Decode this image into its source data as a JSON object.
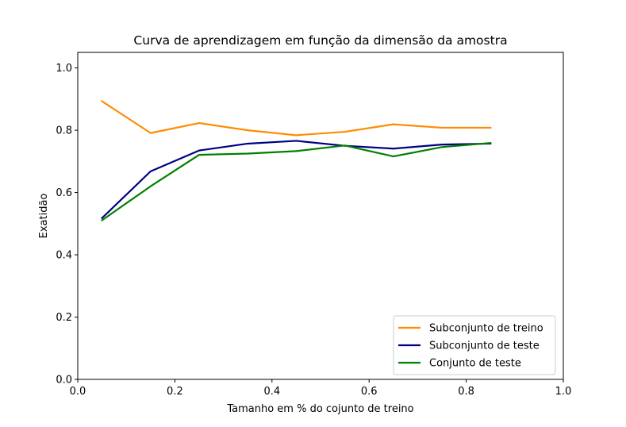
{
  "chart_data": {
    "type": "line",
    "title": "Curva de aprendizagem em função da dimensão da amostra",
    "xlabel": "Tamanho em % do cojunto de treino",
    "ylabel": "Exatidão",
    "xlim": [
      0.0,
      1.0
    ],
    "ylim": [
      0.0,
      1.05
    ],
    "xticks": [
      "0.0",
      "0.2",
      "0.4",
      "0.6",
      "0.8",
      "1.0"
    ],
    "yticks": [
      "0.0",
      "0.2",
      "0.4",
      "0.6",
      "0.8",
      "1.0"
    ],
    "grid": false,
    "legend_position": "lower-right",
    "x": [
      0.05,
      0.15,
      0.25,
      0.35,
      0.45,
      0.55,
      0.65,
      0.75,
      0.85
    ],
    "series": [
      {
        "name": "Subconjunto de treino",
        "color": "#ff8c00",
        "values": [
          0.893,
          0.791,
          0.823,
          0.8,
          0.784,
          0.795,
          0.819,
          0.808,
          0.808
        ]
      },
      {
        "name": "Subconjunto de teste",
        "color": "#000080",
        "values": [
          0.518,
          0.668,
          0.735,
          0.757,
          0.766,
          0.75,
          0.741,
          0.754,
          0.757
        ]
      },
      {
        "name": "Conjunto de teste",
        "color": "#008000",
        "values": [
          0.511,
          0.62,
          0.721,
          0.725,
          0.733,
          0.751,
          0.716,
          0.746,
          0.759
        ]
      }
    ]
  }
}
